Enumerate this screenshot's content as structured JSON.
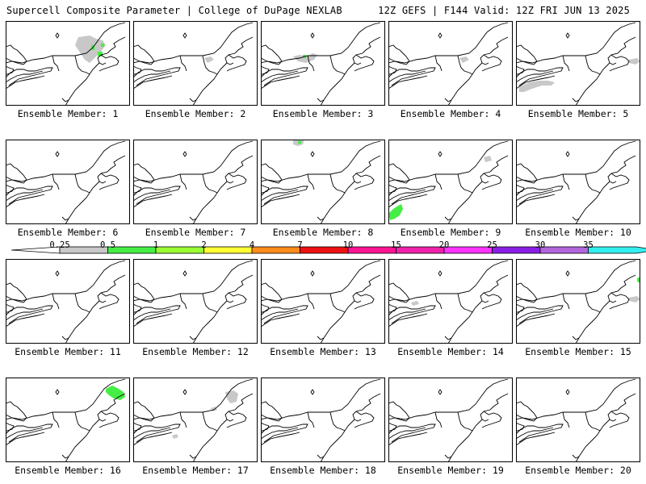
{
  "header": {
    "left": "Supercell Composite Parameter | College of DuPage NEXLAB",
    "right": "12Z GEFS | F144 Valid: 12Z FRI JUN 13 2025"
  },
  "member_label_prefix": "Ensemble Member: ",
  "members": [
    {
      "id": 1,
      "label": "Ensemble Member: 1",
      "features": [
        {
          "type": "gray",
          "shape": "ne_blob_large"
        },
        {
          "type": "green",
          "shape": "ne_spots"
        }
      ]
    },
    {
      "id": 2,
      "label": "Ensemble Member: 2",
      "features": [
        {
          "type": "gray",
          "shape": "ne_small"
        }
      ]
    },
    {
      "id": 3,
      "label": "Ensemble Member: 3",
      "features": [
        {
          "type": "gray",
          "shape": "ne_mid"
        },
        {
          "type": "green",
          "shape": "ne_dot"
        }
      ]
    },
    {
      "id": 4,
      "label": "Ensemble Member: 4",
      "features": [
        {
          "type": "gray",
          "shape": "ne_small"
        }
      ]
    },
    {
      "id": 5,
      "label": "Ensemble Member: 5",
      "features": [
        {
          "type": "gray",
          "shape": "sw_band"
        },
        {
          "type": "gray",
          "shape": "far_ne"
        }
      ]
    },
    {
      "id": 6,
      "label": "Ensemble Member: 6",
      "features": []
    },
    {
      "id": 7,
      "label": "Ensemble Member: 7",
      "features": []
    },
    {
      "id": 8,
      "label": "Ensemble Member: 8",
      "features": [
        {
          "type": "gray",
          "shape": "top_center"
        },
        {
          "type": "green",
          "shape": "top_dot"
        }
      ]
    },
    {
      "id": 9,
      "label": "Ensemble Member: 9",
      "features": [
        {
          "type": "green",
          "shape": "sw_corner"
        },
        {
          "type": "gray",
          "shape": "ne_dash"
        }
      ]
    },
    {
      "id": 10,
      "label": "Ensemble Member: 10",
      "features": []
    },
    {
      "id": 11,
      "label": "Ensemble Member: 11",
      "features": []
    },
    {
      "id": 12,
      "label": "Ensemble Member: 12",
      "features": []
    },
    {
      "id": 13,
      "label": "Ensemble Member: 13",
      "features": []
    },
    {
      "id": 14,
      "label": "Ensemble Member: 14",
      "features": [
        {
          "type": "gray",
          "shape": "mid_dash"
        }
      ]
    },
    {
      "id": 15,
      "label": "Ensemble Member: 15",
      "features": [
        {
          "type": "gray",
          "shape": "far_ne"
        },
        {
          "type": "green",
          "shape": "right_edge"
        }
      ]
    },
    {
      "id": 16,
      "label": "Ensemble Member: 16",
      "features": [
        {
          "type": "green",
          "shape": "ne_big_green"
        }
      ]
    },
    {
      "id": 17,
      "label": "Ensemble Member: 17",
      "features": [
        {
          "type": "gray",
          "shape": "ne_mid2"
        },
        {
          "type": "gray",
          "shape": "mid_small"
        },
        {
          "type": "gray",
          "shape": "bottom_small"
        }
      ]
    },
    {
      "id": 18,
      "label": "Ensemble Member: 18",
      "features": []
    },
    {
      "id": 19,
      "label": "Ensemble Member: 19",
      "features": []
    },
    {
      "id": 20,
      "label": "Ensemble Member: 20",
      "features": []
    }
  ],
  "colorbar": {
    "ticks": [
      "0.25",
      "0.5",
      "1",
      "2",
      "4",
      "7",
      "10",
      "15",
      "20",
      "25",
      "30",
      "35"
    ],
    "colors": [
      "#c8c8c8",
      "#44ee44",
      "#99ff33",
      "#ffff33",
      "#ff8c1a",
      "#ee1111",
      "#ff1493",
      "#ee22aa",
      "#ff33ff",
      "#8a1ee6",
      "#b266dd",
      "#33eeee"
    ],
    "left_cap_color": "#ffffff"
  },
  "map_colors": {
    "gray": "#c8c8c8",
    "green": "#44ee44",
    "outline": "#000000"
  }
}
